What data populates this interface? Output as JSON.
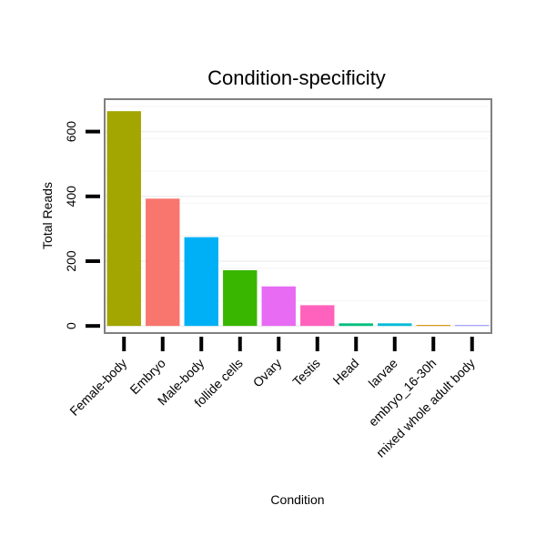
{
  "chart_data": {
    "type": "bar",
    "title": "Condition-specificity",
    "xlabel": "Condition",
    "ylabel": "Total Reads",
    "categories": [
      "Female-body",
      "Embryo",
      "Male-body",
      "follide cells",
      "Ovary",
      "Testis",
      "Head",
      "larvae",
      "embryo_16-30h",
      "mixed whole adult body"
    ],
    "values": [
      663,
      393,
      274,
      172,
      122,
      64,
      8,
      8,
      3,
      2
    ],
    "colors": [
      "#A3A500",
      "#F8766D",
      "#00B0F6",
      "#39B600",
      "#E76BF3",
      "#FF62BC",
      "#00BF7D",
      "#00BCD8",
      "#D89000",
      "#9590FF"
    ],
    "yticks": [
      0,
      200,
      400,
      600
    ],
    "ylim": [
      -22,
      700
    ],
    "grid": true,
    "legend": "none"
  }
}
